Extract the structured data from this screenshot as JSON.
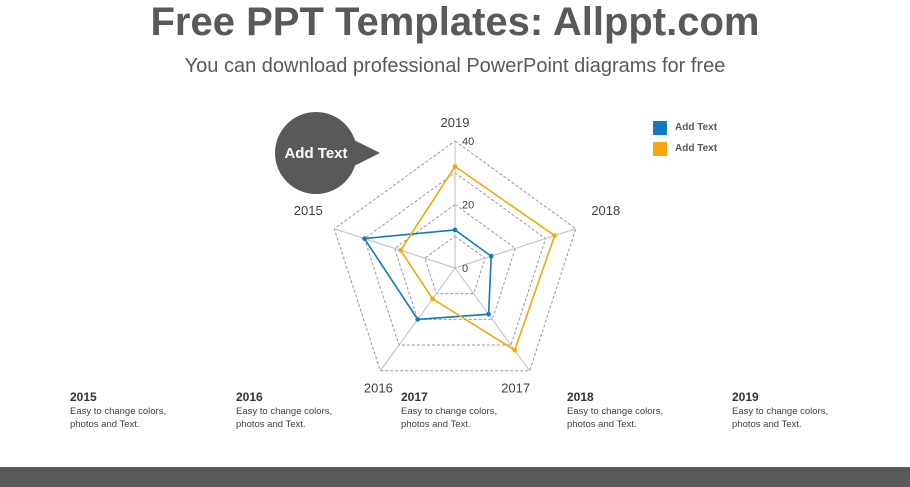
{
  "header": {
    "title": "Free PPT Templates: Allppt.com",
    "subtitle": "You can download professional PowerPoint diagrams for free"
  },
  "callout": {
    "label": "Add Text"
  },
  "legend": {
    "items": [
      {
        "label": "Add Text",
        "color": "#0E7BC0"
      },
      {
        "label": "Add Text",
        "color": "#F5A80B"
      }
    ]
  },
  "chart_data": {
    "type": "radar",
    "categories": [
      "2019",
      "2018",
      "2017",
      "2016",
      "2015"
    ],
    "rlim": [
      0,
      40
    ],
    "ticks": [
      0,
      20,
      40
    ],
    "grid": true,
    "legend_position": "top-right",
    "series": [
      {
        "name": "Add Text",
        "color": "#0E7BC0",
        "values": [
          12,
          12,
          18,
          20,
          30
        ]
      },
      {
        "name": "Add Text",
        "color": "#F5A80B",
        "values": [
          32,
          33,
          32,
          12,
          18
        ]
      }
    ]
  },
  "notes": [
    {
      "year": "2015",
      "text": "Easy to change colors, photos and Text."
    },
    {
      "year": "2016",
      "text": "Easy to change colors, photos and Text."
    },
    {
      "year": "2017",
      "text": "Easy to change colors, photos and Text."
    },
    {
      "year": "2018",
      "text": "Easy to change colors, photos and Text."
    },
    {
      "year": "2019",
      "text": "Easy to change colors, photos and Text."
    }
  ]
}
